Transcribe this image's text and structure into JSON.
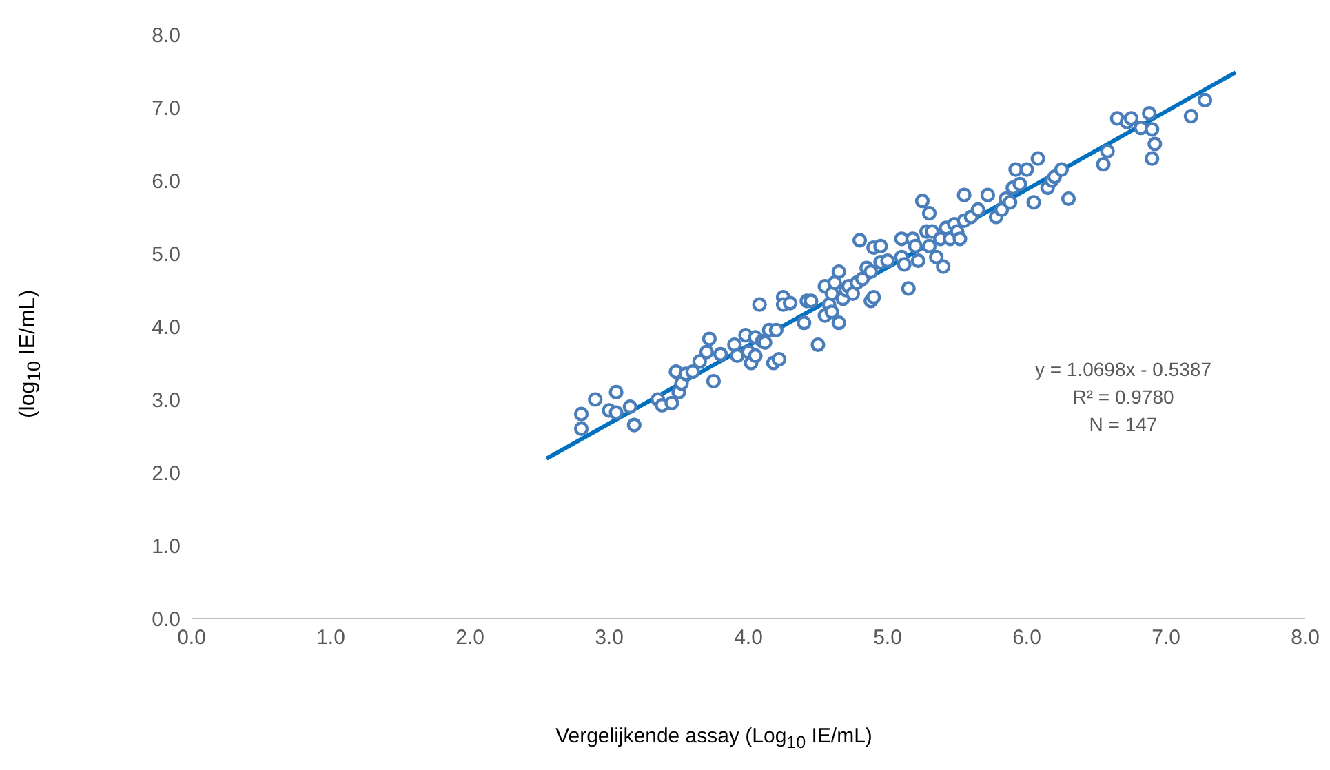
{
  "chart_data": {
    "type": "scatter",
    "xlabel": "Vergelijkende assay (Log$_{10}$ IE/mL)",
    "ylabel": "(log$_{10}$ IE/mL)",
    "xlim": [
      0,
      8
    ],
    "ylim": [
      0,
      8
    ],
    "xticks": [
      {
        "value": 0,
        "label": "0.0"
      },
      {
        "value": 1,
        "label": "1.0"
      },
      {
        "value": 2,
        "label": "2.0"
      },
      {
        "value": 3,
        "label": "3.0"
      },
      {
        "value": 4,
        "label": "4.0"
      },
      {
        "value": 5,
        "label": "5.0"
      },
      {
        "value": 6,
        "label": "6.0"
      },
      {
        "value": 7,
        "label": "7.0"
      },
      {
        "value": 8,
        "label": "8.0"
      }
    ],
    "yticks": [
      {
        "value": 0,
        "label": "0.0"
      },
      {
        "value": 1,
        "label": "1.0"
      },
      {
        "value": 2,
        "label": "2.0"
      },
      {
        "value": 3,
        "label": "3.0"
      },
      {
        "value": 4,
        "label": "4.0"
      },
      {
        "value": 5,
        "label": "5.0"
      },
      {
        "value": 6,
        "label": "6.0"
      },
      {
        "value": 7,
        "label": "7.0"
      },
      {
        "value": 8,
        "label": "8.0"
      }
    ],
    "grid": false,
    "annotations": [
      "y = 1.0698x - 0.5387",
      "R² = 0.9780",
      "N = 147"
    ],
    "series": [
      {
        "marker": "circle",
        "color": "#4a7ebb",
        "x": [
          2.8,
          2.8,
          2.9,
          3.0,
          3.05,
          3.05,
          3.15,
          3.18,
          3.35,
          3.38,
          3.45,
          3.48,
          3.5,
          3.52,
          3.55,
          3.6,
          3.65,
          3.7,
          3.72,
          3.75,
          3.8,
          3.9,
          3.92,
          3.98,
          4.0,
          4.02,
          4.05,
          4.05,
          4.08,
          4.1,
          4.12,
          4.15,
          4.18,
          4.22,
          4.2,
          4.25,
          4.25,
          4.3,
          4.4,
          4.42,
          4.45,
          4.5,
          4.55,
          4.55,
          4.58,
          4.6,
          4.6,
          4.62,
          4.65,
          4.65,
          4.68,
          4.7,
          4.72,
          4.75,
          4.78,
          4.8,
          4.82,
          4.85,
          4.88,
          4.88,
          4.9,
          4.9,
          4.95,
          4.95,
          5.0,
          5.1,
          5.1,
          5.12,
          5.15,
          5.18,
          5.2,
          5.22,
          5.25,
          5.28,
          5.3,
          5.3,
          5.32,
          5.35,
          5.38,
          5.4,
          5.42,
          5.45,
          5.48,
          5.5,
          5.52,
          5.55,
          5.55,
          5.6,
          5.65,
          5.72,
          5.78,
          5.82,
          5.85,
          5.88,
          5.9,
          5.92,
          5.95,
          6.0,
          6.05,
          6.08,
          6.15,
          6.18,
          6.2,
          6.25,
          6.3,
          6.55,
          6.58,
          6.65,
          6.72,
          6.75,
          6.82,
          6.88,
          6.9,
          6.9,
          6.92,
          7.18,
          7.28
        ],
        "values": [
          2.8,
          2.6,
          3.0,
          2.85,
          3.1,
          2.82,
          2.9,
          2.65,
          3.0,
          2.92,
          2.95,
          3.38,
          3.1,
          3.22,
          3.35,
          3.38,
          3.52,
          3.65,
          3.83,
          3.25,
          3.62,
          3.75,
          3.6,
          3.88,
          3.65,
          3.5,
          3.85,
          3.6,
          4.3,
          3.8,
          3.78,
          3.95,
          3.5,
          3.55,
          3.95,
          4.4,
          4.3,
          4.32,
          4.05,
          4.35,
          4.35,
          3.75,
          4.55,
          4.15,
          4.3,
          4.2,
          4.45,
          4.6,
          4.75,
          4.05,
          4.38,
          4.5,
          4.55,
          4.45,
          4.6,
          5.18,
          4.65,
          4.8,
          4.75,
          4.35,
          4.4,
          5.08,
          4.88,
          5.1,
          4.9,
          5.2,
          4.95,
          4.85,
          4.52,
          5.2,
          5.1,
          4.9,
          5.72,
          5.3,
          5.55,
          5.1,
          5.3,
          4.95,
          5.2,
          4.82,
          5.35,
          5.2,
          5.4,
          5.3,
          5.2,
          5.8,
          5.45,
          5.5,
          5.6,
          5.8,
          5.5,
          5.6,
          5.75,
          5.7,
          5.9,
          6.15,
          5.95,
          6.15,
          5.7,
          6.3,
          5.9,
          6.0,
          6.05,
          6.15,
          5.75,
          6.22,
          6.4,
          6.85,
          6.8,
          6.85,
          6.72,
          6.92,
          6.7,
          6.3,
          6.5,
          6.88,
          7.1
        ]
      },
      {
        "type": "line",
        "color": "#0070c0",
        "x": [
          2.55,
          7.5
        ],
        "values": [
          2.19,
          7.48
        ]
      }
    ]
  }
}
